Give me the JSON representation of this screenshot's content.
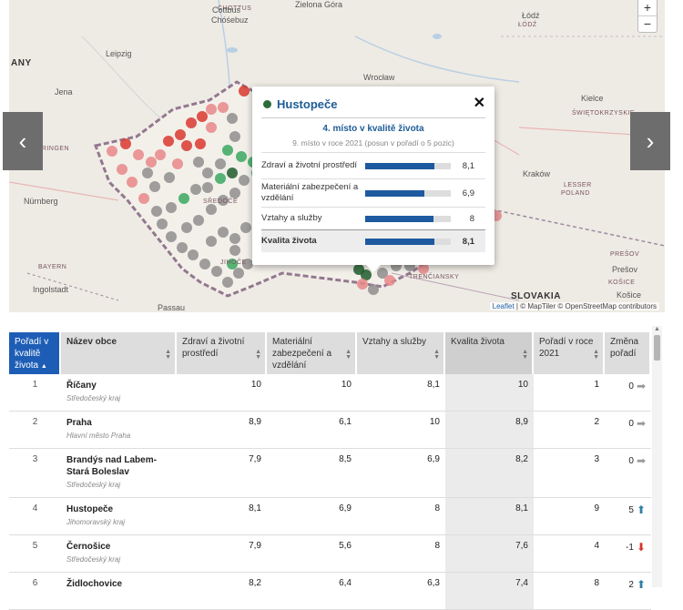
{
  "map": {
    "labels": [
      {
        "text": "CHOTTUS",
        "x": 229,
        "y": 6
      },
      {
        "text": "Cottbus",
        "x": 223,
        "y": 6
      },
      {
        "text": "Chóśebuz",
        "x": 222,
        "y": 17
      },
      {
        "text": "Zielona Góra",
        "x": 314,
        "y": -3
      },
      {
        "text": "Łódź",
        "x": 563,
        "y": 12
      },
      {
        "text": "ŁÓDŹ",
        "x": 559,
        "y": 24
      },
      {
        "text": "ANY",
        "x": 2,
        "y": 64
      },
      {
        "text": "Leipzig",
        "x": 106,
        "y": 54
      },
      {
        "text": "Wrocław",
        "x": 389,
        "y": 80
      },
      {
        "text": "Jena",
        "x": 50,
        "y": 96
      },
      {
        "text": "Kielce",
        "x": 628,
        "y": 103
      },
      {
        "text": "ŚWIĘTOKRZYSKIE",
        "x": 618,
        "y": 121
      },
      {
        "text": "THÜRINGEN",
        "x": 20,
        "y": 160
      },
      {
        "text": "Kraków",
        "x": 564,
        "y": 186
      },
      {
        "text": "LESSER",
        "x": 609,
        "y": 200
      },
      {
        "text": "POLAND",
        "x": 606,
        "y": 209
      },
      {
        "text": "Nürnberg",
        "x": 16,
        "y": 216
      },
      {
        "text": "BAYERN",
        "x": 32,
        "y": 290
      },
      {
        "text": "Ingolstadt",
        "x": 26,
        "y": 313
      },
      {
        "text": "Passau",
        "x": 163,
        "y": 333
      },
      {
        "text": "SLOVAKIA",
        "x": 551,
        "y": 320
      },
      {
        "text": "PREŠOV",
        "x": 660,
        "y": 276
      },
      {
        "text": "Prešov",
        "x": 662,
        "y": 291
      },
      {
        "text": "KOŠICE",
        "x": 658,
        "y": 307
      },
      {
        "text": "Košice",
        "x": 667,
        "y": 319
      },
      {
        "text": "TRENČIANSKY",
        "x": 439,
        "y": 301
      },
      {
        "text": "JIHOČE",
        "x": 232,
        "y": 285
      },
      {
        "text": "SŘEDOČE",
        "x": 213,
        "y": 218
      }
    ],
    "attribution_leaflet": "Leaflet",
    "attribution_rest": "| © MapTiler © OpenStreetMap contributors",
    "zoom_in": "+",
    "zoom_out": "−"
  },
  "nav": {
    "prev_icon": "‹",
    "next_icon": "›"
  },
  "popup": {
    "title": "Hustopeče",
    "close": "✕",
    "rank": "4. místo v kvalitě života",
    "previous": "9. místo v roce 2021 (posun v pořadí o 5 pozic)",
    "rows": [
      {
        "label": "Zdraví a životní prostředí",
        "value": "8,1",
        "fraction": 0.81
      },
      {
        "label": "Materiální zabezpečení a vzdělání",
        "value": "6,9",
        "fraction": 0.69
      },
      {
        "label": "Vztahy a služby",
        "value": "8",
        "fraction": 0.8
      },
      {
        "label": "Kvalita života",
        "value": "8,1",
        "fraction": 0.81,
        "total": true
      }
    ]
  },
  "table": {
    "headers": [
      "Pořadí v kvalitě života",
      "Název obce",
      "Zdraví a životní prostředí",
      "Materiální zabezpečení a vzdělání",
      "Vztahy a služby",
      "Kvalita života",
      "Pořadí v roce 2021",
      "Změna pořadí"
    ],
    "sort_asc_icon": "▲",
    "rows": [
      {
        "rank": "1",
        "name": "Říčany",
        "kraj": "Středočeský kraj",
        "zdravi": "10",
        "material": "10",
        "vztahy": "8,1",
        "kvalita": "10",
        "rok2021": "1",
        "zmena": "0",
        "dir": "same"
      },
      {
        "rank": "2",
        "name": "Praha",
        "kraj": "Hlavní město Praha",
        "zdravi": "8,9",
        "material": "6,1",
        "vztahy": "10",
        "kvalita": "8,9",
        "rok2021": "2",
        "zmena": "0",
        "dir": "same"
      },
      {
        "rank": "3",
        "name": "Brandýs nad Labem-Stará Boleslav",
        "kraj": "Středočeský kraj",
        "zdravi": "7,9",
        "material": "8,5",
        "vztahy": "6,9",
        "kvalita": "8,2",
        "rok2021": "3",
        "zmena": "0",
        "dir": "same"
      },
      {
        "rank": "4",
        "name": "Hustopeče",
        "kraj": "Jihomoravský kraj",
        "zdravi": "8,1",
        "material": "6,9",
        "vztahy": "8",
        "kvalita": "8,1",
        "rok2021": "9",
        "zmena": "5",
        "dir": "up"
      },
      {
        "rank": "5",
        "name": "Černošice",
        "kraj": "Středočeský kraj",
        "zdravi": "7,9",
        "material": "5,6",
        "vztahy": "8",
        "kvalita": "7,6",
        "rok2021": "4",
        "zmena": "-1",
        "dir": "down"
      },
      {
        "rank": "6",
        "name": "Židlochovice",
        "kraj": "",
        "zdravi": "8,2",
        "material": "6,4",
        "vztahy": "6,3",
        "kvalita": "7,4",
        "rok2021": "8",
        "zmena": "2",
        "dir": "up"
      }
    ]
  },
  "colors": {
    "red": "#d9382f",
    "lightred": "#e8878a",
    "green": "#3aa860",
    "darkgreen": "#1f5c2b",
    "grey": "#8e8e8e",
    "blue": "#1d5db6",
    "up": "#2f7ea6",
    "down": "#d6342c",
    "same": "#9a9a9a"
  }
}
